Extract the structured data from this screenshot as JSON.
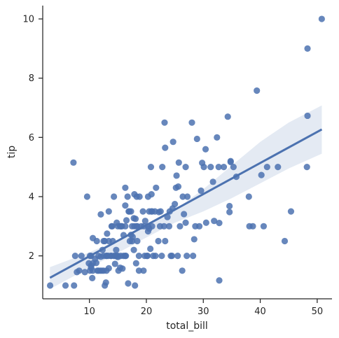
{
  "chart_data": {
    "type": "scatter",
    "xlabel": "total_bill",
    "ylabel": "tip",
    "xlim": [
      1.8,
      52.6
    ],
    "ylim": [
      0.55,
      10.45
    ],
    "x_ticks": [
      10,
      20,
      30,
      40,
      50
    ],
    "y_ticks": [
      2,
      4,
      6,
      8,
      10
    ],
    "grid": false,
    "legend": "none",
    "color": "#4c72b0",
    "regression": {
      "line": [
        [
          3.07,
          1.26
        ],
        [
          50.81,
          6.27
        ]
      ],
      "ci_upper": [
        [
          3.07,
          1.62
        ],
        [
          10,
          2.12
        ],
        [
          15,
          2.53
        ],
        [
          20,
          2.98
        ],
        [
          25,
          3.55
        ],
        [
          30,
          4.25
        ],
        [
          35,
          5.05
        ],
        [
          40,
          5.85
        ],
        [
          45,
          6.5
        ],
        [
          50.81,
          7.08
        ]
      ],
      "ci_lower": [
        [
          3.07,
          0.88
        ],
        [
          10,
          1.6
        ],
        [
          15,
          2.1
        ],
        [
          20,
          2.62
        ],
        [
          25,
          3.12
        ],
        [
          30,
          3.5
        ],
        [
          35,
          3.95
        ],
        [
          40,
          4.45
        ],
        [
          45,
          4.95
        ],
        [
          50.81,
          5.45
        ]
      ]
    },
    "points": [
      [
        3.1,
        1.0
      ],
      [
        5.8,
        1.0
      ],
      [
        7.3,
        1.0
      ],
      [
        7.2,
        5.15
      ],
      [
        7.5,
        2.0
      ],
      [
        7.8,
        1.45
      ],
      [
        8.2,
        1.5
      ],
      [
        8.6,
        2.0
      ],
      [
        9.2,
        1.45
      ],
      [
        9.6,
        4.0
      ],
      [
        9.9,
        1.75
      ],
      [
        10.1,
        1.5
      ],
      [
        10.1,
        2.0
      ],
      [
        10.3,
        1.6
      ],
      [
        10.3,
        1.67
      ],
      [
        10.3,
        2.0
      ],
      [
        10.5,
        1.25
      ],
      [
        10.6,
        1.5
      ],
      [
        10.6,
        1.75
      ],
      [
        10.6,
        2.6
      ],
      [
        11.0,
        1.9
      ],
      [
        11.2,
        1.76
      ],
      [
        11.3,
        2.5
      ],
      [
        11.4,
        1.5
      ],
      [
        11.6,
        1.5
      ],
      [
        11.6,
        2.0
      ],
      [
        11.9,
        1.5
      ],
      [
        12.0,
        3.4
      ],
      [
        12.0,
        1.97
      ],
      [
        12.2,
        1.5
      ],
      [
        12.3,
        2.2
      ],
      [
        12.5,
        2.5
      ],
      [
        12.5,
        2.0
      ],
      [
        12.5,
        1.5
      ],
      [
        12.7,
        2.5
      ],
      [
        12.7,
        1.0
      ],
      [
        12.9,
        1.1
      ],
      [
        13.0,
        2.0
      ],
      [
        13.0,
        1.5
      ],
      [
        13.0,
        2.0
      ],
      [
        13.1,
        2.75
      ],
      [
        13.3,
        2.0
      ],
      [
        13.4,
        3.5
      ],
      [
        13.4,
        2.5
      ],
      [
        13.4,
        1.58
      ],
      [
        13.8,
        2.0
      ],
      [
        13.8,
        2.0
      ],
      [
        13.9,
        3.0
      ],
      [
        14.0,
        3.0
      ],
      [
        14.1,
        2.5
      ],
      [
        14.3,
        2.0
      ],
      [
        14.3,
        4.0
      ],
      [
        14.5,
        2.0
      ],
      [
        14.5,
        1.73
      ],
      [
        14.7,
        2.2
      ],
      [
        14.8,
        3.12
      ],
      [
        14.8,
        2.0
      ],
      [
        15.0,
        1.96
      ],
      [
        15.0,
        3.0
      ],
      [
        15.0,
        2.0
      ],
      [
        15.1,
        1.5
      ],
      [
        15.4,
        3.0
      ],
      [
        15.4,
        1.6
      ],
      [
        15.5,
        3.0
      ],
      [
        15.5,
        2.0
      ],
      [
        15.6,
        3.0
      ],
      [
        15.7,
        3.0
      ],
      [
        15.8,
        1.57
      ],
      [
        16.0,
        2.0
      ],
      [
        16.0,
        2.7
      ],
      [
        16.3,
        4.3
      ],
      [
        16.3,
        3.7
      ],
      [
        16.3,
        2.0
      ],
      [
        16.3,
        3.0
      ],
      [
        16.4,
        2.0
      ],
      [
        16.5,
        3.2
      ],
      [
        16.7,
        4.0
      ],
      [
        16.8,
        1.07
      ],
      [
        16.9,
        3.5
      ],
      [
        17.0,
        3.5
      ],
      [
        17.1,
        2.5
      ],
      [
        17.3,
        2.71
      ],
      [
        17.3,
        3.5
      ],
      [
        17.5,
        2.5
      ],
      [
        17.5,
        3.0
      ],
      [
        17.6,
        2.64
      ],
      [
        17.8,
        3.27
      ],
      [
        17.8,
        2.2
      ],
      [
        17.9,
        4.08
      ],
      [
        17.9,
        3.0
      ],
      [
        18.0,
        1.0
      ],
      [
        18.1,
        3.25
      ],
      [
        18.2,
        1.75
      ],
      [
        18.3,
        3.0
      ],
      [
        18.3,
        4.0
      ],
      [
        18.4,
        3.0
      ],
      [
        18.4,
        2.5
      ],
      [
        18.7,
        2.0
      ],
      [
        18.7,
        1.5
      ],
      [
        18.8,
        4.0
      ],
      [
        19.1,
        3.0
      ],
      [
        19.4,
        3.5
      ],
      [
        19.5,
        1.5
      ],
      [
        19.6,
        3.0
      ],
      [
        19.7,
        2.0
      ],
      [
        19.8,
        3.18
      ],
      [
        20.1,
        2.0
      ],
      [
        20.2,
        2.0
      ],
      [
        20.3,
        3.0
      ],
      [
        20.3,
        2.83
      ],
      [
        20.3,
        4.0
      ],
      [
        20.5,
        3.5
      ],
      [
        20.5,
        2.92
      ],
      [
        20.7,
        2.24
      ],
      [
        20.8,
        5.0
      ],
      [
        20.9,
        3.5
      ],
      [
        20.9,
        4.08
      ],
      [
        21.0,
        3.0
      ],
      [
        21.0,
        3.5
      ],
      [
        21.2,
        2.0
      ],
      [
        21.5,
        3.5
      ],
      [
        21.6,
        2.0
      ],
      [
        21.7,
        4.3
      ],
      [
        22.1,
        2.5
      ],
      [
        22.2,
        3.48
      ],
      [
        22.4,
        3.0
      ],
      [
        22.5,
        3.5
      ],
      [
        22.7,
        2.0
      ],
      [
        22.8,
        5.0
      ],
      [
        23.1,
        3.0
      ],
      [
        23.2,
        6.5
      ],
      [
        23.3,
        2.5
      ],
      [
        23.3,
        5.65
      ],
      [
        23.7,
        3.31
      ],
      [
        24.0,
        3.0
      ],
      [
        24.1,
        3.5
      ],
      [
        24.3,
        2.0
      ],
      [
        24.5,
        2.0
      ],
      [
        24.6,
        3.6
      ],
      [
        24.7,
        5.85
      ],
      [
        25.0,
        3.75
      ],
      [
        25.2,
        4.3
      ],
      [
        25.3,
        4.71
      ],
      [
        25.5,
        2.0
      ],
      [
        25.6,
        4.34
      ],
      [
        25.7,
        5.15
      ],
      [
        25.9,
        3.0
      ],
      [
        26.3,
        1.5
      ],
      [
        26.4,
        4.0
      ],
      [
        26.6,
        3.41
      ],
      [
        26.9,
        3.12
      ],
      [
        26.9,
        5.0
      ],
      [
        27.1,
        2.0
      ],
      [
        27.2,
        4.0
      ],
      [
        28.0,
        6.5
      ],
      [
        28.2,
        2.0
      ],
      [
        28.4,
        2.56
      ],
      [
        28.6,
        3.0
      ],
      [
        28.9,
        5.95
      ],
      [
        29.3,
        3.0
      ],
      [
        29.6,
        4.2
      ],
      [
        29.8,
        5.14
      ],
      [
        30.1,
        5.0
      ],
      [
        30.4,
        5.6
      ],
      [
        30.5,
        3.12
      ],
      [
        31.3,
        5.0
      ],
      [
        31.7,
        4.5
      ],
      [
        31.9,
        3.18
      ],
      [
        32.4,
        6.0
      ],
      [
        32.7,
        5.0
      ],
      [
        32.8,
        1.17
      ],
      [
        32.8,
        3.11
      ],
      [
        33.6,
        5.0
      ],
      [
        34.3,
        6.7
      ],
      [
        34.6,
        3.48
      ],
      [
        34.6,
        3.68
      ],
      [
        34.8,
        5.2
      ],
      [
        34.8,
        5.17
      ],
      [
        35.3,
        5.0
      ],
      [
        35.8,
        4.67
      ],
      [
        38.0,
        4.0
      ],
      [
        38.1,
        3.0
      ],
      [
        38.7,
        3.0
      ],
      [
        39.4,
        7.58
      ],
      [
        40.2,
        4.73
      ],
      [
        40.6,
        3.0
      ],
      [
        41.2,
        5.0
      ],
      [
        43.1,
        5.0
      ],
      [
        44.3,
        2.5
      ],
      [
        45.4,
        3.5
      ],
      [
        48.2,
        5.0
      ],
      [
        48.3,
        6.73
      ],
      [
        48.3,
        9.0
      ],
      [
        50.8,
        10.0
      ]
    ]
  }
}
